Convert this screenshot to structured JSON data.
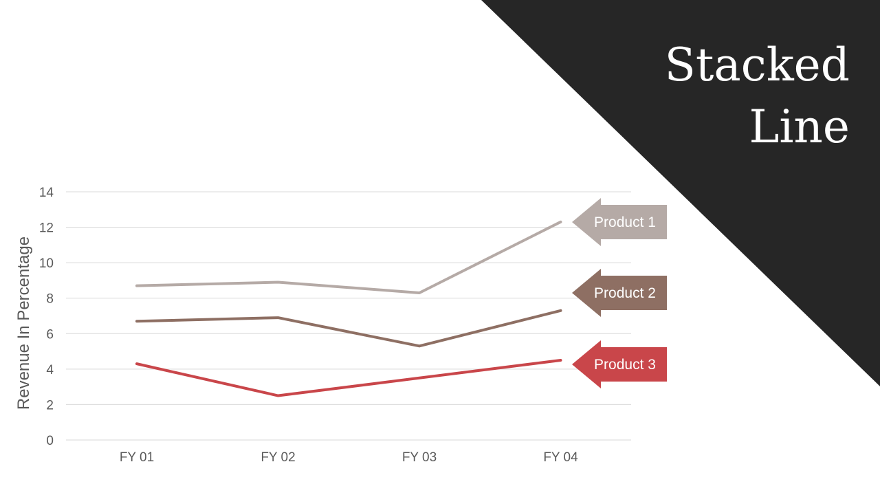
{
  "title": {
    "line1": "Stacked",
    "line2": "Line"
  },
  "colors": {
    "corner": "#262626",
    "product1": "#b5aaa6",
    "product2": "#8e6f63",
    "product3": "#c9464a",
    "grid": "#d9d9d9",
    "text": "#595959"
  },
  "chart_data": {
    "type": "line",
    "categories": [
      "FY 01",
      "FY 02",
      "FY 03",
      "FY 04"
    ],
    "ylabel": "Revenue In Percentage",
    "ylim": [
      0,
      14
    ],
    "yticks": [
      0,
      2,
      4,
      6,
      8,
      10,
      12,
      14
    ],
    "grid": true,
    "legend": "right (arrow callouts)",
    "series": [
      {
        "name": "Product 1",
        "values": [
          8.7,
          8.9,
          8.3,
          12.3
        ],
        "color": "#b5aaa6"
      },
      {
        "name": "Product 2",
        "values": [
          6.7,
          6.9,
          5.3,
          7.3
        ],
        "color": "#8e6f63"
      },
      {
        "name": "Product 3",
        "values": [
          4.3,
          2.5,
          3.5,
          4.5
        ],
        "color": "#c9464a"
      }
    ]
  }
}
